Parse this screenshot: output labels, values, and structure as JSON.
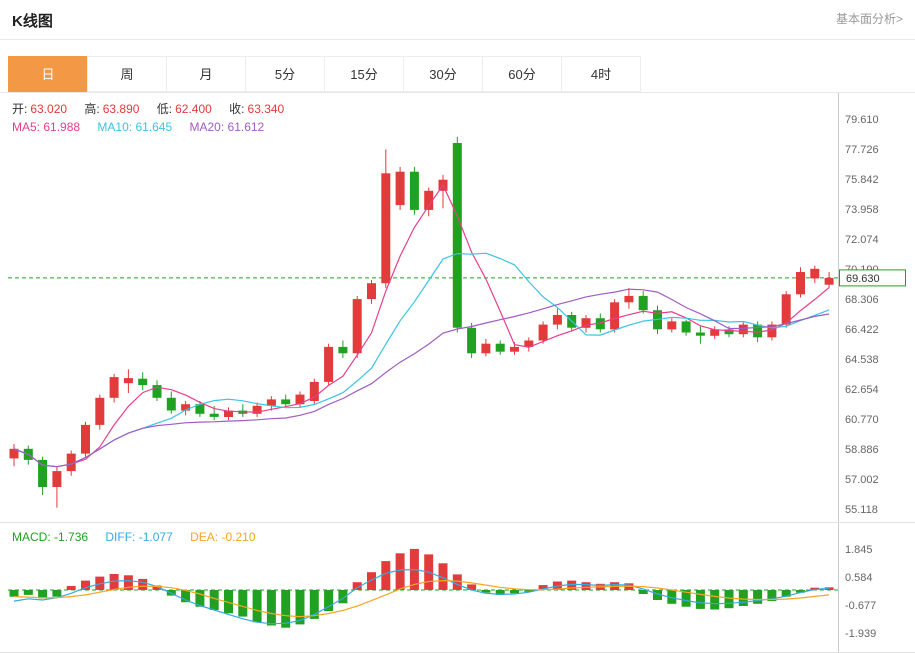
{
  "header": {
    "title": "K线图",
    "link": "基本面分析>"
  },
  "tabs": {
    "items": [
      "日",
      "周",
      "月",
      "5分",
      "15分",
      "30分",
      "60分",
      "4时"
    ],
    "active_index": 0
  },
  "main_chart": {
    "info": {
      "open_label": "开:",
      "open_value": "63.020",
      "high_label": "高:",
      "high_value": "63.890",
      "low_label": "低:",
      "low_value": "62.400",
      "close_label": "收:",
      "close_value": "63.340"
    },
    "ma_info": {
      "ma5_label": "MA5:",
      "ma5_value": "61.988",
      "ma10_label": "MA10:",
      "ma10_value": "61.645",
      "ma20_label": "MA20:",
      "ma20_value": "61.612"
    },
    "current_price_label": "69.630"
  },
  "macd_info": {
    "macd_label": "MACD:",
    "macd_value": "-1.736",
    "diff_label": "DIFF:",
    "diff_value": "-1.077",
    "dea_label": "DEA:",
    "dea_value": "-0.210"
  },
  "colors": {
    "up": "#e23b3b",
    "down": "#21a121",
    "ma5": "#e83e8c",
    "ma10": "#3bc3e3",
    "ma20": "#a05cc4",
    "diff": "#36a9e1",
    "dea": "#f5a623",
    "accent": "#f39845",
    "axis_text": "#666666"
  },
  "chart_data": {
    "type": "candlestick",
    "title": "K线图 (daily K-line with MA5/MA10/MA20 and MACD sub-chart)",
    "legend_position": "top-left",
    "grid": false,
    "price_axis_labels": [
      "79.610",
      "77.726",
      "75.842",
      "73.958",
      "72.074",
      "70.190",
      "68.306",
      "66.422",
      "64.538",
      "62.654",
      "60.770",
      "58.886",
      "57.002",
      "55.118"
    ],
    "current_price": 69.63,
    "ma_periods": [
      5,
      10,
      20
    ],
    "candles_ohlc": [
      [
        58.3,
        59.2,
        57.8,
        58.9
      ],
      [
        58.9,
        59.1,
        57.9,
        58.2
      ],
      [
        58.2,
        58.4,
        56.0,
        56.5
      ],
      [
        56.5,
        57.8,
        55.2,
        57.5
      ],
      [
        57.5,
        58.8,
        57.2,
        58.6
      ],
      [
        58.6,
        60.6,
        58.4,
        60.4
      ],
      [
        60.4,
        62.3,
        60.1,
        62.1
      ],
      [
        62.1,
        63.6,
        61.8,
        63.4
      ],
      [
        63.02,
        63.89,
        62.4,
        63.34
      ],
      [
        63.3,
        63.7,
        62.6,
        62.9
      ],
      [
        62.9,
        63.2,
        61.9,
        62.1
      ],
      [
        62.1,
        62.5,
        61.1,
        61.3
      ],
      [
        61.3,
        61.9,
        61.0,
        61.7
      ],
      [
        61.7,
        61.9,
        60.9,
        61.1
      ],
      [
        61.1,
        61.6,
        60.7,
        60.9
      ],
      [
        60.9,
        61.5,
        60.7,
        61.3
      ],
      [
        61.3,
        61.7,
        60.9,
        61.1
      ],
      [
        61.1,
        61.8,
        60.9,
        61.6
      ],
      [
        61.6,
        62.2,
        61.3,
        62.0
      ],
      [
        62.0,
        62.3,
        61.5,
        61.7
      ],
      [
        61.7,
        62.5,
        61.5,
        62.3
      ],
      [
        61.9,
        63.3,
        61.7,
        63.1
      ],
      [
        63.1,
        65.5,
        62.9,
        65.3
      ],
      [
        65.3,
        65.7,
        64.6,
        64.9
      ],
      [
        64.9,
        68.5,
        64.6,
        68.3
      ],
      [
        68.3,
        69.5,
        68.0,
        69.3
      ],
      [
        69.3,
        77.7,
        69.0,
        76.2
      ],
      [
        74.2,
        76.6,
        73.9,
        76.3
      ],
      [
        76.3,
        76.6,
        73.6,
        73.9
      ],
      [
        73.9,
        75.3,
        73.5,
        75.1
      ],
      [
        75.1,
        76.1,
        74.0,
        75.8
      ],
      [
        78.1,
        78.5,
        66.2,
        66.5
      ],
      [
        66.5,
        66.8,
        64.6,
        64.9
      ],
      [
        64.9,
        65.8,
        64.7,
        65.5
      ],
      [
        65.5,
        65.7,
        64.8,
        65.0
      ],
      [
        65.0,
        65.6,
        64.8,
        65.3
      ],
      [
        65.3,
        65.9,
        65.0,
        65.7
      ],
      [
        65.7,
        66.9,
        65.5,
        66.7
      ],
      [
        66.7,
        67.7,
        66.4,
        67.3
      ],
      [
        67.3,
        67.5,
        66.3,
        66.5
      ],
      [
        66.5,
        67.3,
        66.2,
        67.1
      ],
      [
        67.1,
        67.4,
        66.2,
        66.4
      ],
      [
        66.4,
        68.3,
        66.2,
        68.1
      ],
      [
        68.1,
        69.0,
        67.7,
        68.5
      ],
      [
        68.5,
        68.8,
        67.4,
        67.6
      ],
      [
        67.6,
        67.9,
        66.1,
        66.4
      ],
      [
        66.4,
        67.1,
        66.2,
        66.9
      ],
      [
        66.9,
        67.0,
        66.0,
        66.2
      ],
      [
        66.2,
        66.6,
        65.5,
        66.0
      ],
      [
        66.0,
        66.6,
        65.8,
        66.4
      ],
      [
        66.4,
        66.6,
        65.9,
        66.1
      ],
      [
        66.1,
        66.9,
        65.9,
        66.7
      ],
      [
        66.7,
        66.9,
        65.6,
        65.9
      ],
      [
        65.9,
        66.9,
        65.7,
        66.7
      ],
      [
        66.7,
        68.8,
        66.5,
        68.6
      ],
      [
        68.6,
        70.3,
        68.4,
        70.0
      ],
      [
        69.6,
        70.4,
        69.3,
        70.2
      ],
      [
        69.2,
        70.0,
        69.0,
        69.63
      ]
    ],
    "macd": {
      "axis_labels": [
        "1.845",
        "0.584",
        "-0.677",
        "-1.939"
      ],
      "hist": [
        -0.3,
        -0.22,
        -0.38,
        -0.3,
        0.18,
        0.42,
        0.6,
        0.72,
        0.66,
        0.5,
        0.2,
        -0.25,
        -0.55,
        -0.75,
        -0.9,
        -1.05,
        -1.2,
        -1.45,
        -1.6,
        -1.7,
        -1.55,
        -1.3,
        -0.95,
        -0.6,
        0.35,
        0.8,
        1.3,
        1.65,
        1.85,
        1.6,
        1.2,
        0.7,
        0.25,
        -0.12,
        -0.22,
        -0.15,
        -0.08,
        0.22,
        0.38,
        0.42,
        0.35,
        0.28,
        0.35,
        0.3,
        -0.18,
        -0.45,
        -0.62,
        -0.75,
        -0.85,
        -0.88,
        -0.82,
        -0.72,
        -0.62,
        -0.5,
        -0.3,
        -0.12,
        0.1,
        0.12
      ],
      "diff": [
        -0.5,
        -0.4,
        -0.45,
        -0.35,
        -0.15,
        0.1,
        0.28,
        0.4,
        0.42,
        0.35,
        0.15,
        -0.15,
        -0.45,
        -0.7,
        -0.9,
        -1.1,
        -1.3,
        -1.45,
        -1.52,
        -1.5,
        -1.38,
        -1.1,
        -0.75,
        -0.38,
        0.1,
        0.45,
        0.75,
        0.9,
        0.92,
        0.8,
        0.55,
        0.25,
        0.0,
        -0.15,
        -0.2,
        -0.18,
        -0.1,
        0.05,
        0.18,
        0.25,
        0.24,
        0.2,
        0.24,
        0.22,
        0.05,
        -0.18,
        -0.35,
        -0.48,
        -0.58,
        -0.62,
        -0.6,
        -0.55,
        -0.48,
        -0.4,
        -0.28,
        -0.12,
        0.02,
        0.08
      ],
      "dea": [
        -0.3,
        -0.32,
        -0.35,
        -0.35,
        -0.3,
        -0.22,
        -0.1,
        0.02,
        0.12,
        0.17,
        0.16,
        0.1,
        -0.02,
        -0.18,
        -0.38,
        -0.56,
        -0.74,
        -0.92,
        -1.06,
        -1.16,
        -1.2,
        -1.16,
        -1.06,
        -0.92,
        -0.72,
        -0.48,
        -0.22,
        0.05,
        0.25,
        0.38,
        0.42,
        0.4,
        0.32,
        0.22,
        0.12,
        0.05,
        0.01,
        0.01,
        0.04,
        0.09,
        0.12,
        0.14,
        0.16,
        0.17,
        0.15,
        0.09,
        0.0,
        -0.1,
        -0.2,
        -0.29,
        -0.36,
        -0.41,
        -0.43,
        -0.43,
        -0.41,
        -0.36,
        -0.29,
        -0.22
      ]
    }
  }
}
